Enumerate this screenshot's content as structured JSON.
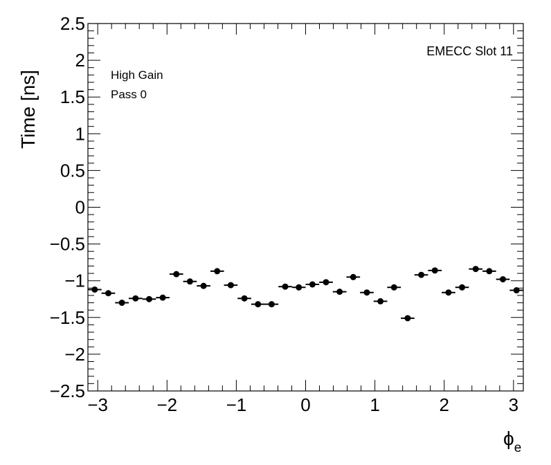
{
  "chart_data": {
    "type": "scatter",
    "title": "",
    "xlabel": "ϕ",
    "xlabel_sub": "e",
    "ylabel": "Time [ns]",
    "xlim": [
      -3.1416,
      3.1416
    ],
    "ylim": [
      -2.5,
      2.5
    ],
    "bin_width": 0.19635,
    "x_ticks": [
      -3,
      -2,
      -1,
      0,
      1,
      2,
      3
    ],
    "x_tick_labels": [
      "−3",
      "−2",
      "−1",
      "0",
      "1",
      "2",
      "3"
    ],
    "y_ticks": [
      -2.5,
      -2,
      -1.5,
      -1,
      -0.5,
      0,
      0.5,
      1,
      1.5,
      2,
      2.5
    ],
    "y_tick_labels": [
      "−2.5",
      "−2",
      "−1.5",
      "−1",
      "−0.5",
      "0",
      "0.5",
      "1",
      "1.5",
      "2",
      "2.5"
    ],
    "annotations": [
      "EMECC Slot 11",
      "High Gain",
      "Pass 0"
    ],
    "series": [
      {
        "x": [
          -3.0434,
          -2.8471,
          -2.6507,
          -2.4544,
          -2.258,
          -2.0617,
          -1.8653,
          -1.669,
          -1.4726,
          -1.2763,
          -1.0799,
          -0.8836,
          -0.6872,
          -0.4909,
          -0.2945,
          -0.0982,
          0.0982,
          0.2945,
          0.4909,
          0.6872,
          0.8836,
          1.0799,
          1.2763,
          1.4726,
          1.669,
          1.8653,
          2.0617,
          2.258,
          2.4544,
          2.6507,
          2.8471,
          3.0434
        ],
        "y": [
          -1.12,
          -1.17,
          -1.3,
          -1.24,
          -1.25,
          -1.23,
          -0.91,
          -1.01,
          -1.07,
          -0.87,
          -1.06,
          -1.24,
          -1.32,
          -1.32,
          -1.08,
          -1.09,
          -1.05,
          -1.02,
          -1.15,
          -0.95,
          -1.16,
          -1.28,
          -1.09,
          -1.51,
          -0.92,
          -0.86,
          -1.16,
          -1.09,
          -0.84,
          -0.87,
          -0.98,
          -1.13
        ]
      }
    ]
  }
}
